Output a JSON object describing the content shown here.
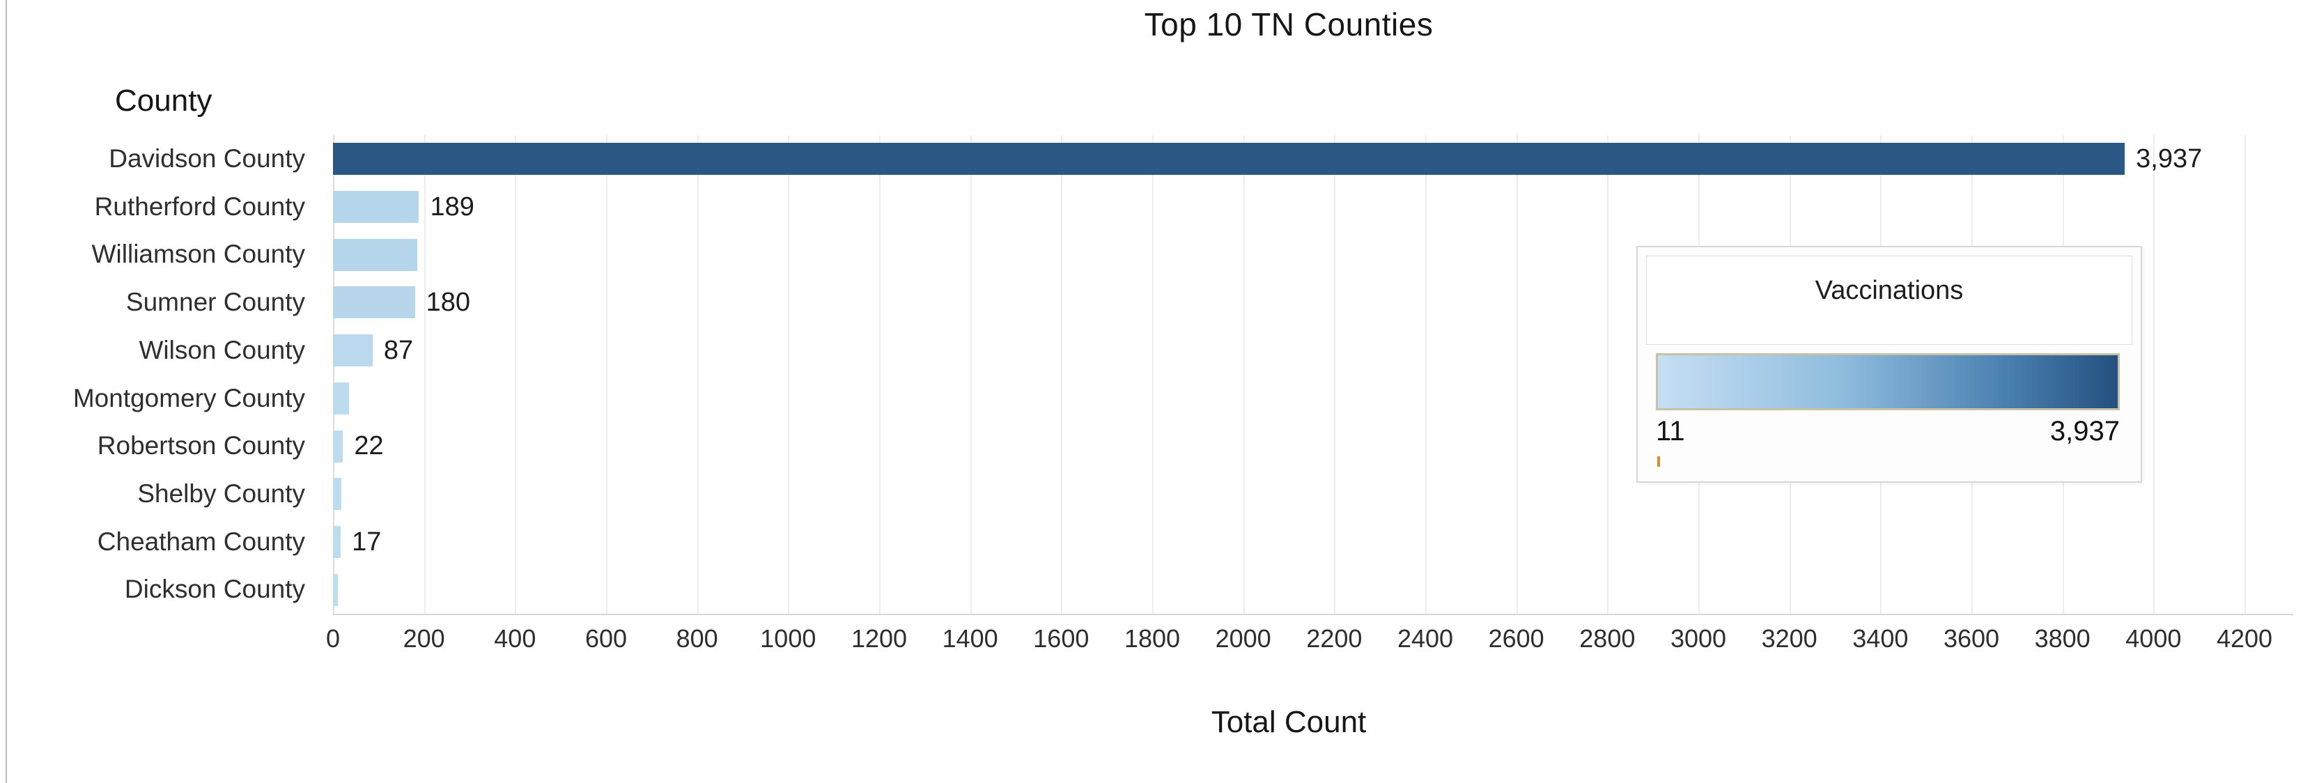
{
  "chart_data": {
    "type": "bar",
    "orientation": "horizontal",
    "title": "Top 10 TN Counties",
    "xlabel": "Total Count",
    "ylabel": "County",
    "categories": [
      "Davidson County",
      "Rutherford County",
      "Williamson County",
      "Sumner County",
      "Wilson County",
      "Montgomery County",
      "Robertson County",
      "Shelby County",
      "Cheatham County",
      "Dickson County"
    ],
    "values": [
      3937,
      189,
      185,
      180,
      87,
      35,
      22,
      19,
      17,
      11
    ],
    "bar_labels": [
      "3,937",
      "189",
      "",
      "180",
      "87",
      "",
      "22",
      "",
      "17",
      ""
    ],
    "x_ticks": [
      "0",
      "200",
      "400",
      "600",
      "800",
      "1000",
      "1200",
      "1400",
      "1600",
      "1800",
      "2000",
      "2200",
      "2400",
      "2600",
      "2800",
      "3000",
      "3200",
      "3400",
      "3600",
      "3800",
      "4000",
      "4200"
    ],
    "x_tick_step": 200,
    "xlim": [
      0,
      4200
    ],
    "grid": "vertical-light-gray",
    "legend": {
      "title": "Vaccinations",
      "min_label": "11",
      "max_label": "3,937",
      "min_value": 11,
      "max_value": 3937,
      "position": "overlay-right"
    },
    "colors": {
      "bar_min": "#BDDCF0",
      "bar_max": "#2A5783",
      "gridline": "#EDEDED",
      "legend_gradient_border": "#C9C1A6",
      "legend_min_tick_orange": "#E08B2D"
    }
  }
}
